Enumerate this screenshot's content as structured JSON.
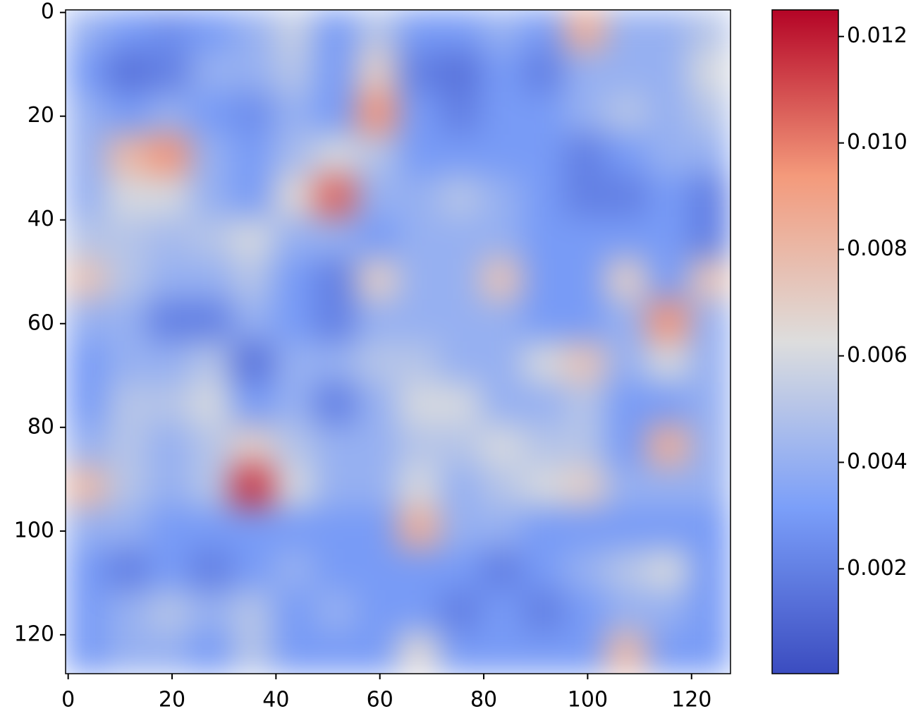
{
  "chart_data": {
    "type": "heatmap",
    "colormap": "coolwarm",
    "xlim": [
      -0.5,
      127.5
    ],
    "ylim": [
      127.5,
      -0.5
    ],
    "xticks": [
      0,
      20,
      40,
      60,
      80,
      100,
      120
    ],
    "yticks": [
      0,
      20,
      40,
      60,
      80,
      100,
      120
    ],
    "clim": [
      3e-05,
      0.0125
    ],
    "cticks": [
      0.002,
      0.004,
      0.006,
      0.008,
      {
        "value": 0.01,
        "label": "0.010"
      },
      0.012
    ],
    "z": [
      [
        0.004,
        0.003,
        0.0025,
        0.003,
        0.004,
        0.0055,
        0.003,
        0.005,
        0.003,
        0.003,
        0.004,
        0.003,
        0.0085,
        0.004,
        0.004,
        0.005
      ],
      [
        0.003,
        0.0015,
        0.002,
        0.004,
        0.004,
        0.005,
        0.003,
        0.007,
        0.002,
        0.0015,
        0.003,
        0.002,
        0.004,
        0.004,
        0.004,
        0.006
      ],
      [
        0.004,
        0.003,
        0.004,
        0.003,
        0.0025,
        0.004,
        0.003,
        0.0095,
        0.003,
        0.002,
        0.003,
        0.003,
        0.004,
        0.005,
        0.004,
        0.005
      ],
      [
        0.004,
        0.008,
        0.0095,
        0.004,
        0.003,
        0.0045,
        0.006,
        0.005,
        0.003,
        0.003,
        0.003,
        0.003,
        0.002,
        0.003,
        0.004,
        0.004
      ],
      [
        0.004,
        0.006,
        0.006,
        0.004,
        0.003,
        0.0065,
        0.0105,
        0.004,
        0.004,
        0.005,
        0.004,
        0.003,
        0.002,
        0.002,
        0.003,
        0.002
      ],
      [
        0.005,
        0.005,
        0.0045,
        0.005,
        0.006,
        0.004,
        0.004,
        0.003,
        0.004,
        0.004,
        0.004,
        0.003,
        0.003,
        0.003,
        0.003,
        0.002
      ],
      [
        0.0075,
        0.005,
        0.004,
        0.004,
        0.005,
        0.003,
        0.002,
        0.007,
        0.004,
        0.004,
        0.0075,
        0.003,
        0.003,
        0.007,
        0.003,
        0.0075
      ],
      [
        0.004,
        0.004,
        0.002,
        0.002,
        0.004,
        0.003,
        0.002,
        0.004,
        0.004,
        0.004,
        0.004,
        0.003,
        0.003,
        0.004,
        0.0095,
        0.004
      ],
      [
        0.003,
        0.004,
        0.004,
        0.005,
        0.0015,
        0.004,
        0.004,
        0.005,
        0.005,
        0.004,
        0.004,
        0.006,
        0.0075,
        0.004,
        0.006,
        0.004
      ],
      [
        0.003,
        0.005,
        0.005,
        0.006,
        0.003,
        0.004,
        0.002,
        0.004,
        0.006,
        0.006,
        0.004,
        0.004,
        0.005,
        0.003,
        0.003,
        0.004
      ],
      [
        0.004,
        0.005,
        0.004,
        0.005,
        0.007,
        0.005,
        0.004,
        0.004,
        0.005,
        0.005,
        0.006,
        0.005,
        0.005,
        0.003,
        0.0085,
        0.004
      ],
      [
        0.008,
        0.005,
        0.004,
        0.005,
        0.0115,
        0.006,
        0.004,
        0.004,
        0.006,
        0.004,
        0.005,
        0.006,
        0.007,
        0.004,
        0.004,
        0.004
      ],
      [
        0.004,
        0.004,
        0.003,
        0.003,
        0.003,
        0.003,
        0.003,
        0.003,
        0.0085,
        0.004,
        0.004,
        0.003,
        0.003,
        0.003,
        0.003,
        0.003
      ],
      [
        0.003,
        0.002,
        0.003,
        0.002,
        0.003,
        0.004,
        0.003,
        0.003,
        0.003,
        0.003,
        0.002,
        0.003,
        0.004,
        0.005,
        0.006,
        0.003
      ],
      [
        0.003,
        0.004,
        0.005,
        0.004,
        0.005,
        0.003,
        0.004,
        0.003,
        0.003,
        0.002,
        0.003,
        0.002,
        0.003,
        0.004,
        0.004,
        0.003
      ],
      [
        0.003,
        0.004,
        0.004,
        0.003,
        0.005,
        0.003,
        0.003,
        0.003,
        0.0065,
        0.003,
        0.003,
        0.003,
        0.003,
        0.008,
        0.003,
        0.003
      ]
    ]
  }
}
